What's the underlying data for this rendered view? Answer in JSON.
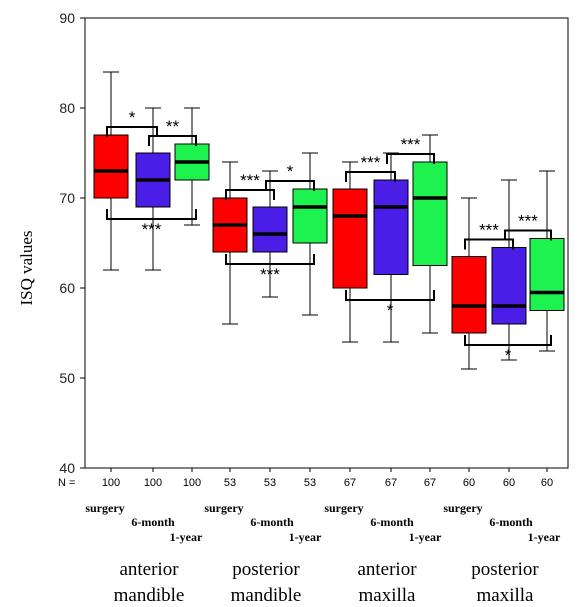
{
  "chart_data": {
    "type": "boxplot",
    "ylabel": "ISQ values",
    "ylim": [
      40,
      90
    ],
    "yticks": [
      40,
      50,
      60,
      70,
      80,
      90
    ],
    "n_prefix": "N =",
    "timepoints": [
      "surgery",
      "6-month",
      "1-year"
    ],
    "colors": {
      "surgery": "#ff0000",
      "6-month": "#4a1ee6",
      "1-year": "#1ef24f"
    },
    "groups": [
      {
        "label_line1": "anterior",
        "label_line2": "mandible",
        "boxes": [
          {
            "timepoint": "surgery",
            "n": "100",
            "min": 62,
            "q1": 70,
            "median": 73,
            "q3": 77,
            "max": 84
          },
          {
            "timepoint": "6-month",
            "n": "100",
            "min": 62,
            "q1": 69,
            "median": 72,
            "q3": 75,
            "max": 80
          },
          {
            "timepoint": "1-year",
            "n": "100",
            "min": 67,
            "q1": 72,
            "median": 74,
            "q3": 76,
            "max": 80
          }
        ],
        "comparisons": [
          {
            "pair": [
              "surgery",
              "6-month"
            ],
            "label": "*",
            "position": "above"
          },
          {
            "pair": [
              "6-month",
              "1-year"
            ],
            "label": "**",
            "position": "above"
          },
          {
            "pair": [
              "surgery",
              "1-year"
            ],
            "label": "***",
            "position": "below"
          }
        ]
      },
      {
        "label_line1": "posterior",
        "label_line2": "mandible",
        "boxes": [
          {
            "timepoint": "surgery",
            "n": "53",
            "min": 56,
            "q1": 64,
            "median": 67,
            "q3": 70,
            "max": 74
          },
          {
            "timepoint": "6-month",
            "n": "53",
            "min": 59,
            "q1": 64,
            "median": 66,
            "q3": 69,
            "max": 73
          },
          {
            "timepoint": "1-year",
            "n": "53",
            "min": 57,
            "q1": 65,
            "median": 69,
            "q3": 71,
            "max": 75
          }
        ],
        "comparisons": [
          {
            "pair": [
              "surgery",
              "6-month"
            ],
            "label": "***",
            "position": "above"
          },
          {
            "pair": [
              "6-month",
              "1-year"
            ],
            "label": "*",
            "position": "above"
          },
          {
            "pair": [
              "surgery",
              "1-year"
            ],
            "label": "***",
            "position": "below"
          }
        ]
      },
      {
        "label_line1": "anterior",
        "label_line2": "maxilla",
        "boxes": [
          {
            "timepoint": "surgery",
            "n": "67",
            "min": 54,
            "q1": 60,
            "median": 68,
            "q3": 71,
            "max": 74
          },
          {
            "timepoint": "6-month",
            "n": "67",
            "min": 54,
            "q1": 61.5,
            "median": 69,
            "q3": 72,
            "max": 75
          },
          {
            "timepoint": "1-year",
            "n": "67",
            "min": 55,
            "q1": 62.5,
            "median": 70,
            "q3": 74,
            "max": 77
          }
        ],
        "comparisons": [
          {
            "pair": [
              "surgery",
              "6-month"
            ],
            "label": "***",
            "position": "above"
          },
          {
            "pair": [
              "6-month",
              "1-year"
            ],
            "label": "***",
            "position": "above"
          },
          {
            "pair": [
              "surgery",
              "1-year"
            ],
            "label": "*",
            "position": "below"
          }
        ]
      },
      {
        "label_line1": "posterior",
        "label_line2": "maxilla",
        "boxes": [
          {
            "timepoint": "surgery",
            "n": "60",
            "min": 51,
            "q1": 55,
            "median": 58,
            "q3": 63.5,
            "max": 70
          },
          {
            "timepoint": "6-month",
            "n": "60",
            "min": 52,
            "q1": 56,
            "median": 58,
            "q3": 64.5,
            "max": 72
          },
          {
            "timepoint": "1-year",
            "n": "60",
            "min": 53,
            "q1": 57.5,
            "median": 59.5,
            "q3": 65.5,
            "max": 73
          }
        ],
        "comparisons": [
          {
            "pair": [
              "surgery",
              "6-month"
            ],
            "label": "***",
            "position": "above"
          },
          {
            "pair": [
              "6-month",
              "1-year"
            ],
            "label": "***",
            "position": "above"
          },
          {
            "pair": [
              "surgery",
              "1-year"
            ],
            "label": "*",
            "position": "below"
          }
        ]
      }
    ]
  }
}
